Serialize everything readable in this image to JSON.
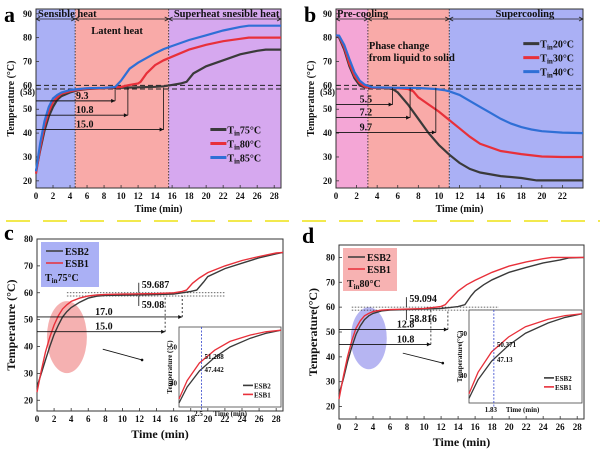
{
  "figure": {
    "separator_color": "#f2e94e"
  },
  "colors": {
    "black": "#3a3a3a",
    "red": "#e8303a",
    "blue": "#2f6fd6",
    "region_blue": "#aab0f5",
    "region_red": "#f9aaa8",
    "region_purple": "#d6a8ef",
    "region_pink": "#f4a6d6",
    "ellipse_red": "#f3a3a3",
    "ellipse_blue": "#a9a8f0",
    "legend_blue_bg": "#aab0f5",
    "legend_red_bg": "#f7b2b2"
  },
  "chart_data": [
    {
      "panel": "a",
      "type": "line",
      "xlabel": "Time (min)",
      "ylabel": "Temperature (°C)",
      "xlim": [
        0,
        28.8
      ],
      "ylim": [
        17,
        92
      ],
      "xticks": [
        0,
        2,
        4,
        6,
        8,
        10,
        12,
        14,
        16,
        18,
        20,
        22,
        24,
        26,
        28
      ],
      "yticks": [
        20,
        30,
        40,
        50,
        60,
        70,
        80,
        90
      ],
      "extra_ytick_label": "(58)",
      "regions": [
        {
          "label": "Sensible heat",
          "from": 0,
          "to": 4.6,
          "color": "region_blue"
        },
        {
          "label": "Latent heat",
          "from": 4.6,
          "to": 15.6,
          "color": "region_red"
        },
        {
          "label": "Superheat snesible heat",
          "from": 15.6,
          "to": 28.8,
          "color": "region_purple"
        }
      ],
      "hlines": [
        60,
        58.5
      ],
      "duration_arrows": [
        {
          "label": "9.3",
          "y": 53.5,
          "to": 9.3
        },
        {
          "label": "10.8",
          "y": 47.5,
          "to": 10.8
        },
        {
          "label": "15.0",
          "y": 41.5,
          "to": 15.0
        }
      ],
      "legend": [
        "Tin75°C",
        "Tin80°C",
        "Tin85°C"
      ],
      "legend_placement": "bottom-right",
      "series": [
        {
          "name": "Tin75°C",
          "color": "black",
          "x": [
            0,
            0.5,
            1,
            1.5,
            2,
            2.5,
            3,
            4,
            5,
            6,
            8,
            10,
            12,
            14,
            15,
            16,
            17,
            17.7,
            18.5,
            20,
            22,
            24,
            26,
            27,
            28.8
          ],
          "y": [
            24,
            33,
            41,
            47,
            51,
            54,
            55.5,
            57,
            58,
            58.5,
            58.8,
            59,
            59.2,
            59.4,
            59.6,
            60.2,
            60.8,
            61.5,
            65,
            68,
            70.5,
            73,
            74.5,
            75,
            75
          ]
        },
        {
          "name": "Tin80°C",
          "color": "red",
          "x": [
            0,
            0.5,
            1,
            1.5,
            2,
            2.5,
            3,
            4,
            5,
            6,
            8,
            10,
            11,
            12,
            12.3,
            13,
            14,
            15,
            16,
            18,
            20,
            22,
            24,
            25,
            28.8
          ],
          "y": [
            23,
            34,
            43,
            49,
            53,
            55,
            56.5,
            57.5,
            58.2,
            58.6,
            58.9,
            59.3,
            60.2,
            60.8,
            61.5,
            65,
            68.5,
            70.5,
            72,
            75,
            77,
            78.5,
            79.5,
            80,
            80
          ]
        },
        {
          "name": "Tin85°C",
          "color": "blue",
          "x": [
            0,
            0.5,
            1,
            1.5,
            2,
            2.5,
            3,
            4,
            5,
            6,
            8,
            9.3,
            10,
            11,
            12,
            13,
            14,
            15,
            16,
            18,
            20,
            22,
            24,
            25,
            28.8
          ],
          "y": [
            24,
            36,
            45,
            51,
            54.5,
            56,
            57,
            58,
            58.5,
            58.8,
            59,
            59.3,
            62,
            67,
            69.5,
            71.5,
            73.5,
            75.2,
            76.5,
            79,
            81,
            83,
            84.5,
            85,
            85
          ]
        }
      ]
    },
    {
      "panel": "b",
      "type": "line",
      "xlabel": "Time (min)",
      "ylabel": "Temperature (°C)",
      "xlim": [
        0,
        24
      ],
      "ylim": [
        17,
        92
      ],
      "xticks": [
        0,
        2,
        4,
        6,
        8,
        10,
        12,
        14,
        16,
        18,
        20,
        22
      ],
      "yticks": [
        20,
        30,
        40,
        50,
        60,
        70,
        80,
        90
      ],
      "extra_ytick_label": "(58)",
      "regions": [
        {
          "label": "Pre-cooling",
          "from": 0,
          "to": 3.1,
          "color": "region_pink"
        },
        {
          "label": "Phase change from liquid to solid",
          "from": 3.1,
          "to": 11.0,
          "color": "region_red"
        },
        {
          "label": "Supercooling",
          "from": 11.0,
          "to": 24,
          "color": "region_blue"
        }
      ],
      "hlines": [
        60,
        58.5
      ],
      "duration_arrows": [
        {
          "label": "5.5",
          "y": 52,
          "to": 5.5
        },
        {
          "label": "7.2",
          "y": 46.5,
          "to": 7.2
        },
        {
          "label": "9.7",
          "y": 40.3,
          "to": 9.7
        }
      ],
      "legend": [
        "Tin20°C",
        "Tin30°C",
        "Tin40°C"
      ],
      "legend_placement": "top-right",
      "series": [
        {
          "name": "Tin20°C",
          "color": "black",
          "x": [
            0,
            0.3,
            0.8,
            1.3,
            1.8,
            2.3,
            2.8,
            3.5,
            5,
            5.5,
            6,
            7,
            8,
            9,
            10,
            11,
            12,
            13,
            14,
            16,
            18,
            19.5,
            21,
            24
          ],
          "y": [
            81,
            80,
            75,
            68,
            63,
            60,
            59.2,
            59,
            58.8,
            58.5,
            57,
            52,
            46,
            40,
            35,
            31,
            27.5,
            25,
            23.5,
            22,
            21.2,
            20.2,
            20.2,
            20.2
          ]
        },
        {
          "name": "Tin30°C",
          "color": "red",
          "x": [
            0,
            0.3,
            0.8,
            1.3,
            1.8,
            2.3,
            2.8,
            3.5,
            5,
            6,
            7,
            7.5,
            8,
            9,
            10,
            11,
            12,
            13,
            14,
            16,
            18,
            20,
            22,
            24
          ],
          "y": [
            81,
            80.5,
            76,
            69,
            64,
            61,
            59.5,
            59,
            59,
            58.8,
            58.5,
            57.5,
            55,
            52,
            49,
            45.5,
            42,
            38.5,
            35.5,
            32.5,
            31.2,
            30.2,
            30,
            30
          ]
        },
        {
          "name": "Tin40°C",
          "color": "blue",
          "x": [
            0,
            0.3,
            0.8,
            1.3,
            1.8,
            2.3,
            2.8,
            3.5,
            6,
            8,
            9.7,
            10.5,
            11,
            12,
            13,
            14,
            15,
            16,
            17,
            18,
            19,
            20,
            22,
            24
          ],
          "y": [
            81,
            80.8,
            77,
            71,
            65.5,
            62,
            60.3,
            59.2,
            59,
            58.9,
            58.5,
            58,
            57.5,
            56,
            53.5,
            51,
            48.5,
            46,
            44,
            42.5,
            41.5,
            40.8,
            40.2,
            40
          ]
        }
      ]
    },
    {
      "panel": "c",
      "type": "line",
      "xlabel": "Time (min)",
      "ylabel": "Temperature (°C)",
      "xlim": [
        0,
        28.8
      ],
      "ylim": [
        16,
        80
      ],
      "xticks": [
        0,
        2,
        4,
        6,
        8,
        10,
        12,
        14,
        16,
        18,
        20,
        22,
        24,
        26,
        28
      ],
      "yticks": [
        20,
        30,
        40,
        50,
        60,
        70,
        80
      ],
      "legend": [
        "ESB2",
        "ESB1"
      ],
      "legend_note": "Tin75°C",
      "legend_placement": "top-left",
      "plateau_annotations": [
        "59.687",
        "59.08"
      ],
      "duration_arrows": [
        {
          "label": "17.0",
          "y": 51,
          "to": 17.0
        },
        {
          "label": "15.0",
          "y": 45.5,
          "to": 15.0
        }
      ],
      "inset": {
        "xlabel": "Time (min)",
        "ylabel": "Temperature (°C)",
        "yticks": [
          40,
          50
        ],
        "marker_x_label": "2.5",
        "values": [
          "51.288",
          "47.442"
        ],
        "legend": [
          "ESB2",
          "ESB1"
        ]
      },
      "series": [
        {
          "name": "ESB2",
          "color": "black",
          "x": [
            0,
            0.5,
            1,
            1.5,
            2,
            2.5,
            3,
            3.5,
            4,
            5,
            6,
            7,
            8,
            10,
            12,
            14,
            16,
            17,
            18,
            18.7,
            19.5,
            20,
            22,
            24,
            26,
            28,
            28.8
          ],
          "y": [
            25,
            30,
            35,
            40,
            44.5,
            48,
            51,
            53,
            54.5,
            56.5,
            58,
            58.7,
            59,
            59.1,
            59.2,
            59.3,
            59.5,
            60,
            60.5,
            61,
            64,
            66,
            69,
            71,
            73,
            74.5,
            75
          ]
        },
        {
          "name": "ESB1",
          "color": "red",
          "x": [
            0,
            0.5,
            1,
            1.5,
            2,
            2.5,
            3,
            3.5,
            4,
            5,
            6,
            7,
            8,
            10,
            12,
            14,
            16,
            17,
            17.5,
            18.2,
            19,
            20,
            22,
            24,
            26,
            28,
            28.8
          ],
          "y": [
            23,
            31,
            38,
            43.5,
            48,
            51.5,
            54,
            55.5,
            56.8,
            58,
            58.8,
            59.2,
            59.4,
            59.5,
            59.6,
            59.7,
            60,
            60.5,
            61,
            63.5,
            65.5,
            67.5,
            70,
            72,
            73.5,
            74.8,
            75
          ]
        }
      ]
    },
    {
      "panel": "d",
      "type": "line",
      "xlabel": "Time (min)",
      "ylabel": "Temperature(°C)",
      "xlim": [
        0,
        28.8
      ],
      "ylim": [
        15,
        85
      ],
      "xticks": [
        0,
        2,
        4,
        6,
        8,
        10,
        12,
        14,
        16,
        18,
        20,
        22,
        24,
        26,
        28
      ],
      "yticks": [
        20,
        30,
        40,
        50,
        60,
        70,
        80
      ],
      "legend": [
        "ESB2",
        "ESB1"
      ],
      "legend_note": "Tin80°C",
      "legend_placement": "top-left",
      "plateau_annotations": [
        "59.094",
        "58.816"
      ],
      "duration_arrows": [
        {
          "label": "12.8",
          "y": 51,
          "to": 12.8
        },
        {
          "label": "10.8",
          "y": 45,
          "to": 10.8
        }
      ],
      "inset": {
        "xlabel": "Time (min)",
        "ylabel": "Temperature(°C)",
        "yticks": [
          40,
          50
        ],
        "marker_x_label": "1.83",
        "values": [
          "50.371",
          "47.13"
        ],
        "legend": [
          "ESB2",
          "ESB1"
        ]
      },
      "series": [
        {
          "name": "ESB2",
          "color": "black",
          "x": [
            0,
            0.5,
            1,
            1.5,
            2,
            2.5,
            3,
            3.5,
            4,
            5,
            6,
            8,
            10,
            12,
            13,
            14,
            14.8,
            15.5,
            16,
            17,
            18,
            20,
            22,
            24,
            26,
            27,
            28.8
          ],
          "y": [
            25,
            31,
            38,
            44,
            49,
            52.5,
            55,
            56.5,
            57.5,
            58.5,
            58.8,
            59,
            59.2,
            59.5,
            59.8,
            60.2,
            61,
            64.5,
            66.5,
            69,
            71,
            74,
            76,
            77.8,
            79,
            79.8,
            80
          ]
        },
        {
          "name": "ESB1",
          "color": "red",
          "x": [
            0,
            0.5,
            1,
            1.5,
            2,
            2.5,
            3,
            3.5,
            4,
            5,
            6,
            8,
            10,
            11,
            12,
            12.5,
            13,
            14,
            15,
            16,
            18,
            20,
            22,
            24,
            25,
            26,
            28.8
          ],
          "y": [
            23,
            32,
            40,
            46.5,
            51.5,
            54.5,
            56.5,
            57.5,
            58.2,
            58.8,
            59,
            59.2,
            59.4,
            59.8,
            60.3,
            61,
            63,
            66.5,
            69,
            70.8,
            74,
            76.5,
            78.2,
            79.5,
            80,
            80,
            80
          ]
        }
      ]
    }
  ]
}
